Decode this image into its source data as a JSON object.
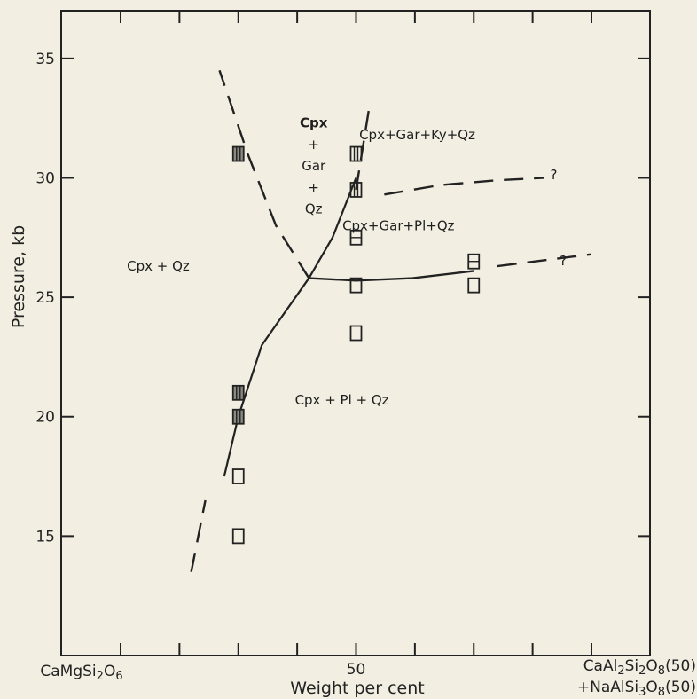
{
  "chart_data": {
    "type": "scatter",
    "title": "",
    "xlabel": "Weight per cent",
    "ylabel": "Pressure, kb",
    "xlim": [
      0,
      100
    ],
    "ylim": [
      10,
      37
    ],
    "x_tick_values": [
      0,
      50,
      100
    ],
    "x_tick_labels": [
      "CaMgSi2O6",
      "50",
      "CaAl2Si2O8(50)"
    ],
    "x_right_label_line2": "+NaAlSi3O8(50)",
    "y_ticks": [
      15,
      20,
      25,
      30,
      35
    ],
    "grid": false,
    "experiments": [
      {
        "x": 25,
        "y": 31.0,
        "symbol": "filled-square"
      },
      {
        "x": 25,
        "y": 21.0,
        "symbol": "filled-square"
      },
      {
        "x": 25,
        "y": 20.0,
        "symbol": "filled-square"
      },
      {
        "x": 25,
        "y": 17.5,
        "symbol": "open-square"
      },
      {
        "x": 25,
        "y": 15.0,
        "symbol": "open-square"
      },
      {
        "x": 50,
        "y": 31.0,
        "symbol": "double-bar-square"
      },
      {
        "x": 50,
        "y": 29.5,
        "symbol": "double-bar-square"
      },
      {
        "x": 50,
        "y": 27.5,
        "symbol": "single-bar-square"
      },
      {
        "x": 50,
        "y": 25.5,
        "symbol": "open-square"
      },
      {
        "x": 50,
        "y": 23.5,
        "symbol": "open-square"
      },
      {
        "x": 75,
        "y": 26.5,
        "symbol": "single-bar-square"
      },
      {
        "x": 75,
        "y": 25.5,
        "symbol": "open-square"
      }
    ],
    "boundaries": [
      {
        "name": "gar-in",
        "style": "solid",
        "points": [
          [
            15,
            13.5
          ],
          [
            22,
            17.5
          ],
          [
            25,
            20
          ],
          [
            30,
            23
          ],
          [
            40,
            25.8
          ],
          [
            45,
            27.5
          ],
          [
            50,
            30
          ],
          [
            53,
            33.2
          ]
        ]
      },
      {
        "name": "gar-in-dashed-low",
        "style": "dashed",
        "points": [
          [
            15,
            13.5
          ],
          [
            18,
            16.5
          ]
        ]
      },
      {
        "name": "gar-in-dashed-high",
        "style": "dashed",
        "points": [
          [
            50,
            29.5
          ],
          [
            53,
            33.2
          ]
        ]
      },
      {
        "name": "qz-out",
        "style": "dashed",
        "points": [
          [
            40,
            25.8
          ],
          [
            33,
            28
          ],
          [
            27,
            31
          ],
          [
            21,
            34.5
          ]
        ]
      },
      {
        "name": "pl-out",
        "style": "solid",
        "points": [
          [
            40,
            25.8
          ],
          [
            50,
            25.7
          ],
          [
            62,
            25.8
          ],
          [
            75,
            26.1
          ],
          [
            90,
            26.6
          ]
        ]
      },
      {
        "name": "pl-out-dashed",
        "style": "dashed",
        "points": [
          [
            80,
            26.3
          ],
          [
            100,
            26.8
          ]
        ]
      },
      {
        "name": "ky-in",
        "style": "dashed",
        "points": [
          [
            56,
            29.3
          ],
          [
            68,
            29.7
          ],
          [
            80,
            29.9
          ],
          [
            90,
            30
          ]
        ]
      }
    ],
    "question_marks": [
      {
        "text": "?",
        "x": 92,
        "y": 30.2
      },
      {
        "text": "?",
        "x": 94,
        "y": 26.6
      }
    ],
    "field_labels": [
      {
        "text": "Cpx + Qz",
        "x": 8,
        "y": 26.3
      },
      {
        "text": "Cpx",
        "x": 41,
        "y": 32.3,
        "bold": true
      },
      {
        "text": "+",
        "x": 41,
        "y": 31.4
      },
      {
        "text": "Gar",
        "x": 41,
        "y": 30.5
      },
      {
        "text": "+",
        "x": 41,
        "y": 29.6
      },
      {
        "text": "Qz",
        "x": 41,
        "y": 28.7
      },
      {
        "text": "Cpx+Gar+Ky+Qz",
        "x": 63,
        "y": 31.8
      },
      {
        "text": "Cpx+Gar+Pl+Qz",
        "x": 59,
        "y": 28.0
      },
      {
        "text": "Cpx + Pl + Qz",
        "x": 47,
        "y": 20.7
      }
    ]
  }
}
